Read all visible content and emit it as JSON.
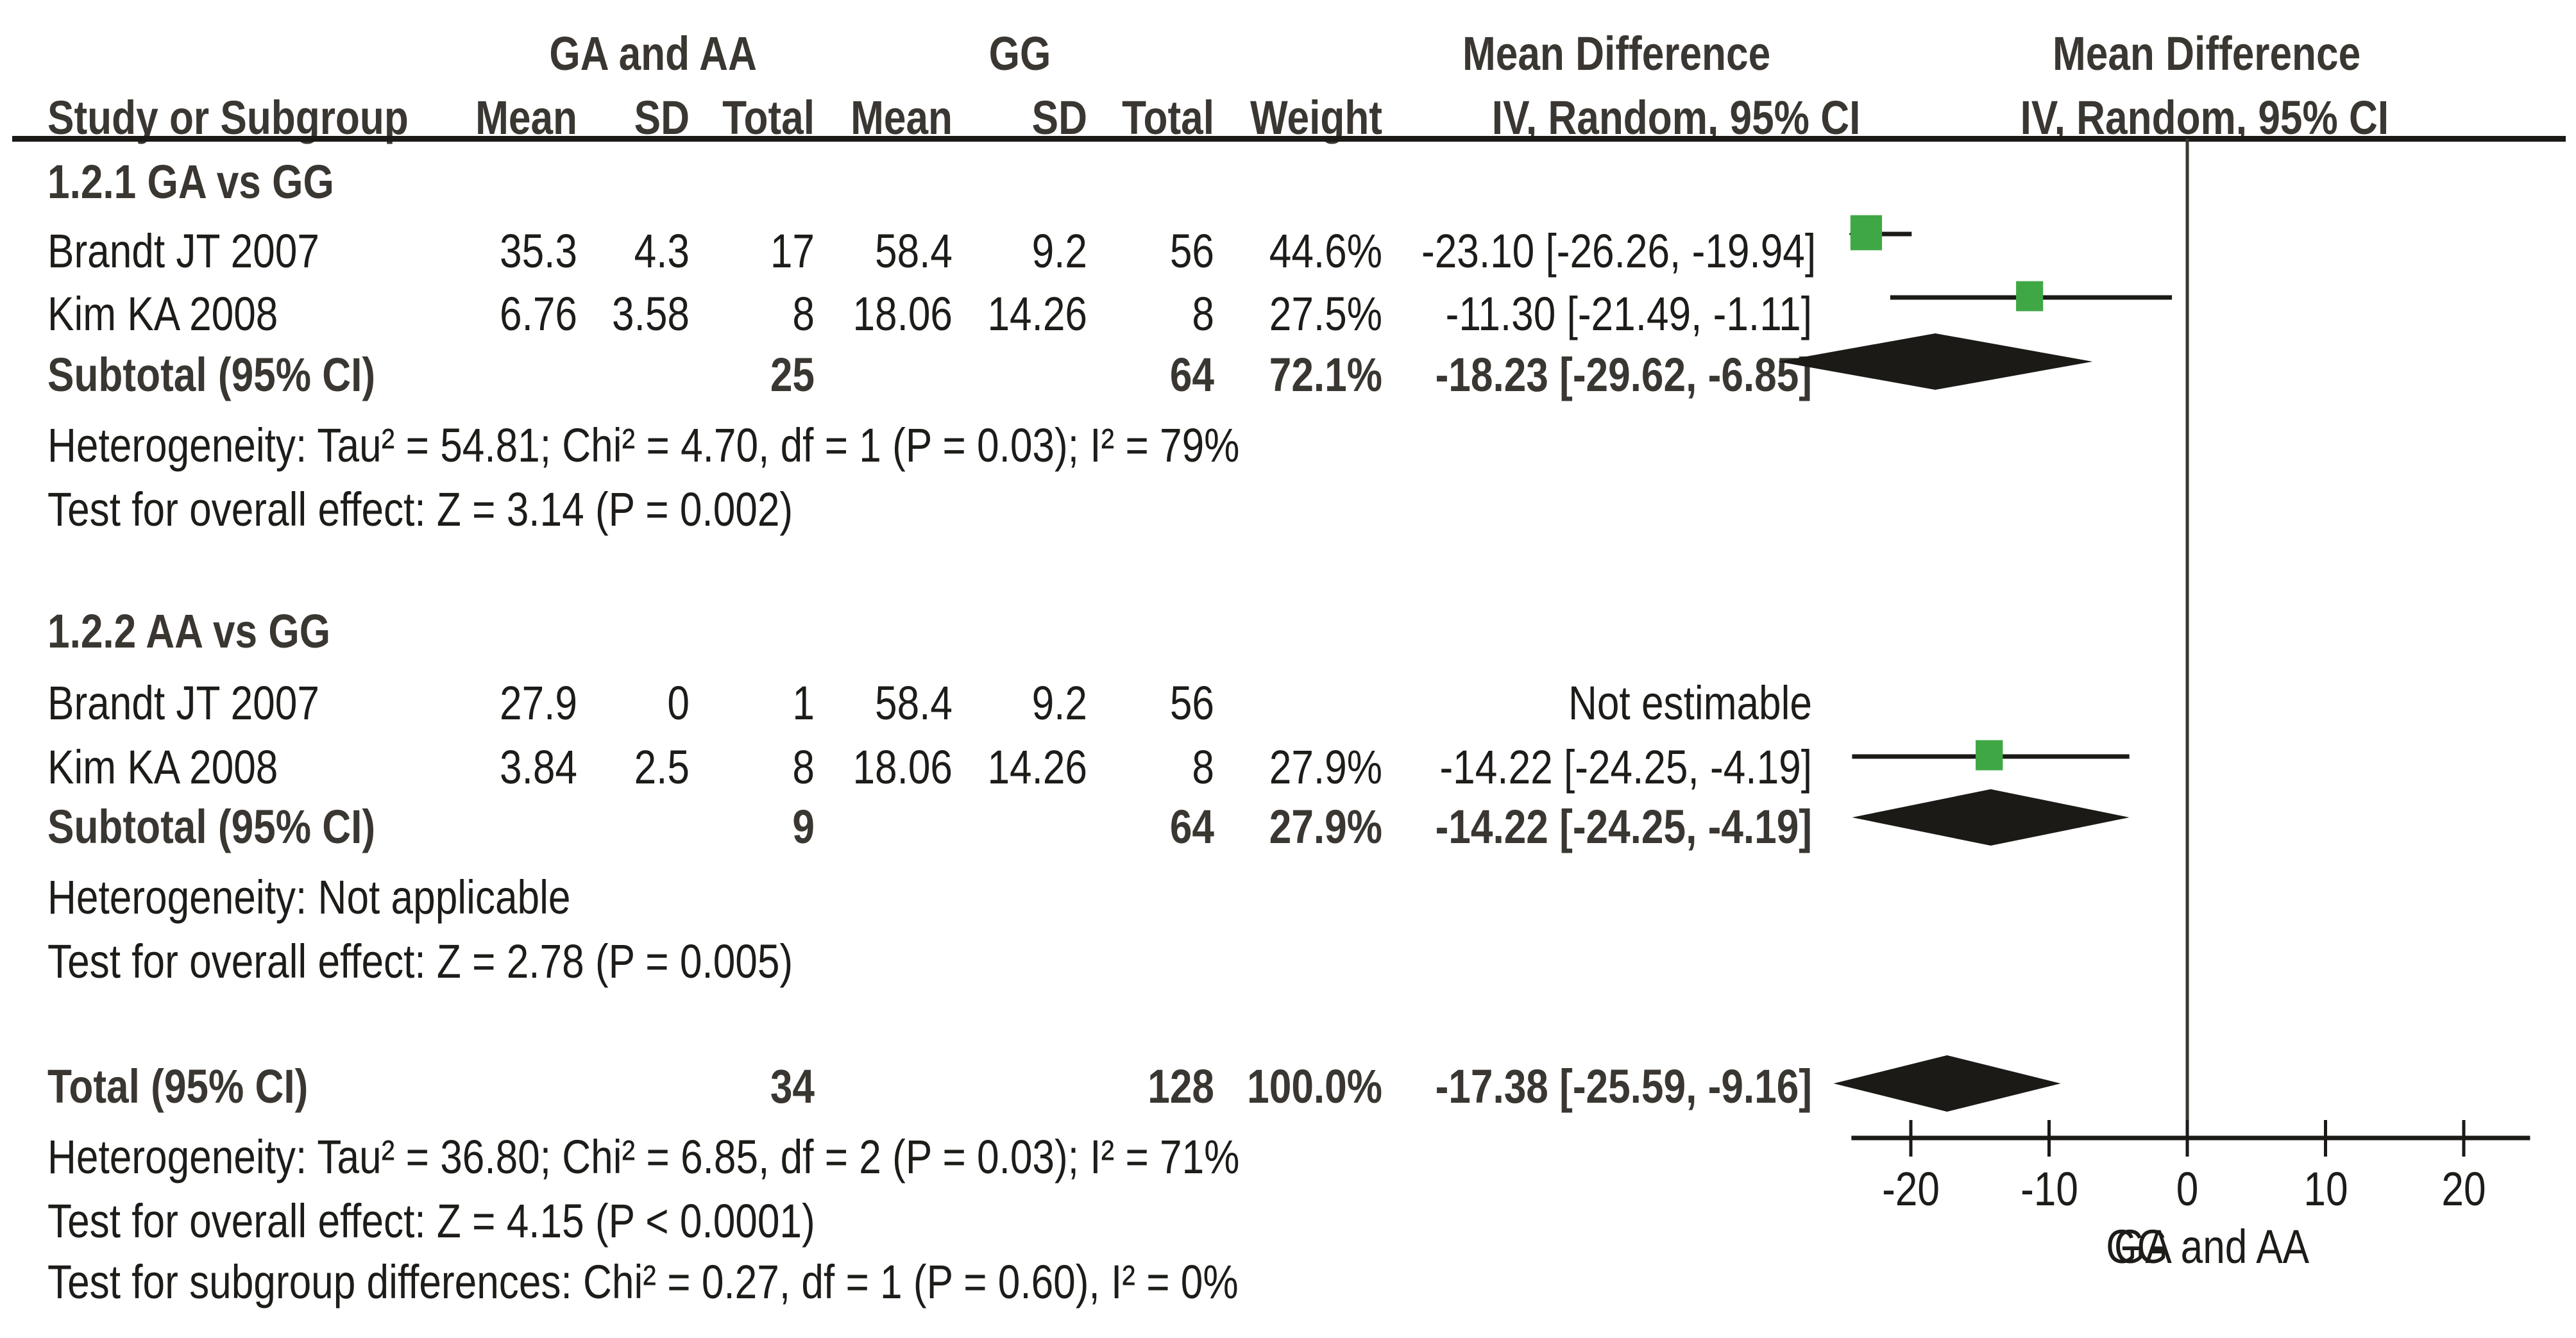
{
  "header": {
    "group1": "GA and AA",
    "group2": "GG",
    "effect_col_title": "Mean Difference",
    "plot_col_title": "Mean Difference",
    "columns": {
      "study": "Study or Subgroup",
      "mean1": "Mean",
      "sd1": "SD",
      "total1": "Total",
      "mean2": "Mean",
      "sd2": "SD",
      "total2": "Total",
      "weight": "Weight",
      "effect": "IV, Random, 95% CI",
      "plot": "IV, Random, 95% CI"
    }
  },
  "rows": [
    {
      "kind": "subgroup",
      "label": "1.2.1 GA vs GG"
    },
    {
      "kind": "study",
      "label": "Brandt JT 2007",
      "mean1": "35.3",
      "sd1": "4.3",
      "total1": "17",
      "mean2": "58.4",
      "sd2": "9.2",
      "total2": "56",
      "weight": "44.6%",
      "effect": "-23.10 [-26.26, -19.94]"
    },
    {
      "kind": "study",
      "label": "Kim KA 2008",
      "mean1": "6.76",
      "sd1": "3.58",
      "total1": "8",
      "mean2": "18.06",
      "sd2": "14.26",
      "total2": "8",
      "weight": "27.5%",
      "effect": "-11.30 [-21.49, -1.11]"
    },
    {
      "kind": "subtotal",
      "label": "Subtotal (95% CI)",
      "total1": "25",
      "total2": "64",
      "weight": "72.1%",
      "effect": "-18.23 [-29.62, -6.85]"
    },
    {
      "kind": "note",
      "label": "Heterogeneity: Tau² = 54.81; Chi² = 4.70, df = 1 (P = 0.03); I² = 79%"
    },
    {
      "kind": "note",
      "label": "Test for overall effect: Z = 3.14 (P = 0.002)"
    },
    {
      "kind": "subgroup",
      "label": "1.2.2 AA vs GG"
    },
    {
      "kind": "study",
      "label": "Brandt JT 2007",
      "mean1": "27.9",
      "sd1": "0",
      "total1": "1",
      "mean2": "58.4",
      "sd2": "9.2",
      "total2": "56",
      "weight": "",
      "effect": "Not estimable"
    },
    {
      "kind": "study",
      "label": "Kim KA 2008",
      "mean1": "3.84",
      "sd1": "2.5",
      "total1": "8",
      "mean2": "18.06",
      "sd2": "14.26",
      "total2": "8",
      "weight": "27.9%",
      "effect": "-14.22 [-24.25, -4.19]"
    },
    {
      "kind": "subtotal",
      "label": "Subtotal (95% CI)",
      "total1": "9",
      "total2": "64",
      "weight": "27.9%",
      "effect": "-14.22 [-24.25, -4.19]"
    },
    {
      "kind": "note",
      "label": "Heterogeneity: Not applicable"
    },
    {
      "kind": "note",
      "label": "Test for overall effect: Z = 2.78 (P = 0.005)"
    },
    {
      "kind": "total",
      "label": "Total (95% CI)",
      "total1": "34",
      "total2": "128",
      "weight": "100.0%",
      "effect": "-17.38 [-25.59, -9.16]"
    },
    {
      "kind": "note",
      "label": "Heterogeneity: Tau² = 36.80; Chi² = 6.85, df = 2 (P = 0.03); I² = 71%"
    },
    {
      "kind": "note",
      "label": "Test for overall effect: Z = 4.15 (P < 0.0001)"
    },
    {
      "kind": "note",
      "label": "Test for subgroup differences: Chi² = 0.27, df = 1 (P = 0.60), I² = 0%"
    }
  ],
  "colors": {
    "study_marker": "#3fa845",
    "diamond": "#1c1a17",
    "text": "#1e1c19",
    "bold_text": "#3a3631"
  },
  "chart_data": {
    "type": "forest",
    "title": "",
    "xlabel_left": "GG",
    "xlabel_right": "GA and AA",
    "x_ticks": [
      -20,
      -10,
      0,
      10,
      20
    ],
    "x_tick_labels": [
      "-20",
      "-10",
      "0",
      "10",
      "20"
    ],
    "xlim": [
      -24.3,
      24.8
    ],
    "null_line": 0,
    "studies": [
      {
        "subgroup": "1.2.1 GA vs GG",
        "name": "Brandt JT 2007",
        "estimate": -23.1,
        "lower": -26.26,
        "upper": -19.94,
        "weight": 44.6
      },
      {
        "subgroup": "1.2.1 GA vs GG",
        "name": "Kim KA 2008",
        "estimate": -11.3,
        "lower": -21.49,
        "upper": -1.11,
        "weight": 27.5
      },
      {
        "subgroup": "1.2.2 AA vs GG",
        "name": "Brandt JT 2007",
        "estimate": null,
        "lower": null,
        "upper": null,
        "weight": null
      },
      {
        "subgroup": "1.2.2 AA vs GG",
        "name": "Kim KA 2008",
        "estimate": -14.22,
        "lower": -24.25,
        "upper": -4.19,
        "weight": 27.9
      }
    ],
    "summaries": [
      {
        "name": "Subtotal 1.2.1",
        "estimate": -18.23,
        "lower": -29.62,
        "upper": -6.85,
        "weight": 72.1
      },
      {
        "name": "Subtotal 1.2.2",
        "estimate": -14.22,
        "lower": -24.25,
        "upper": -4.19,
        "weight": 27.9
      },
      {
        "name": "Total",
        "estimate": -17.38,
        "lower": -25.59,
        "upper": -9.16,
        "weight": 100.0
      }
    ]
  }
}
